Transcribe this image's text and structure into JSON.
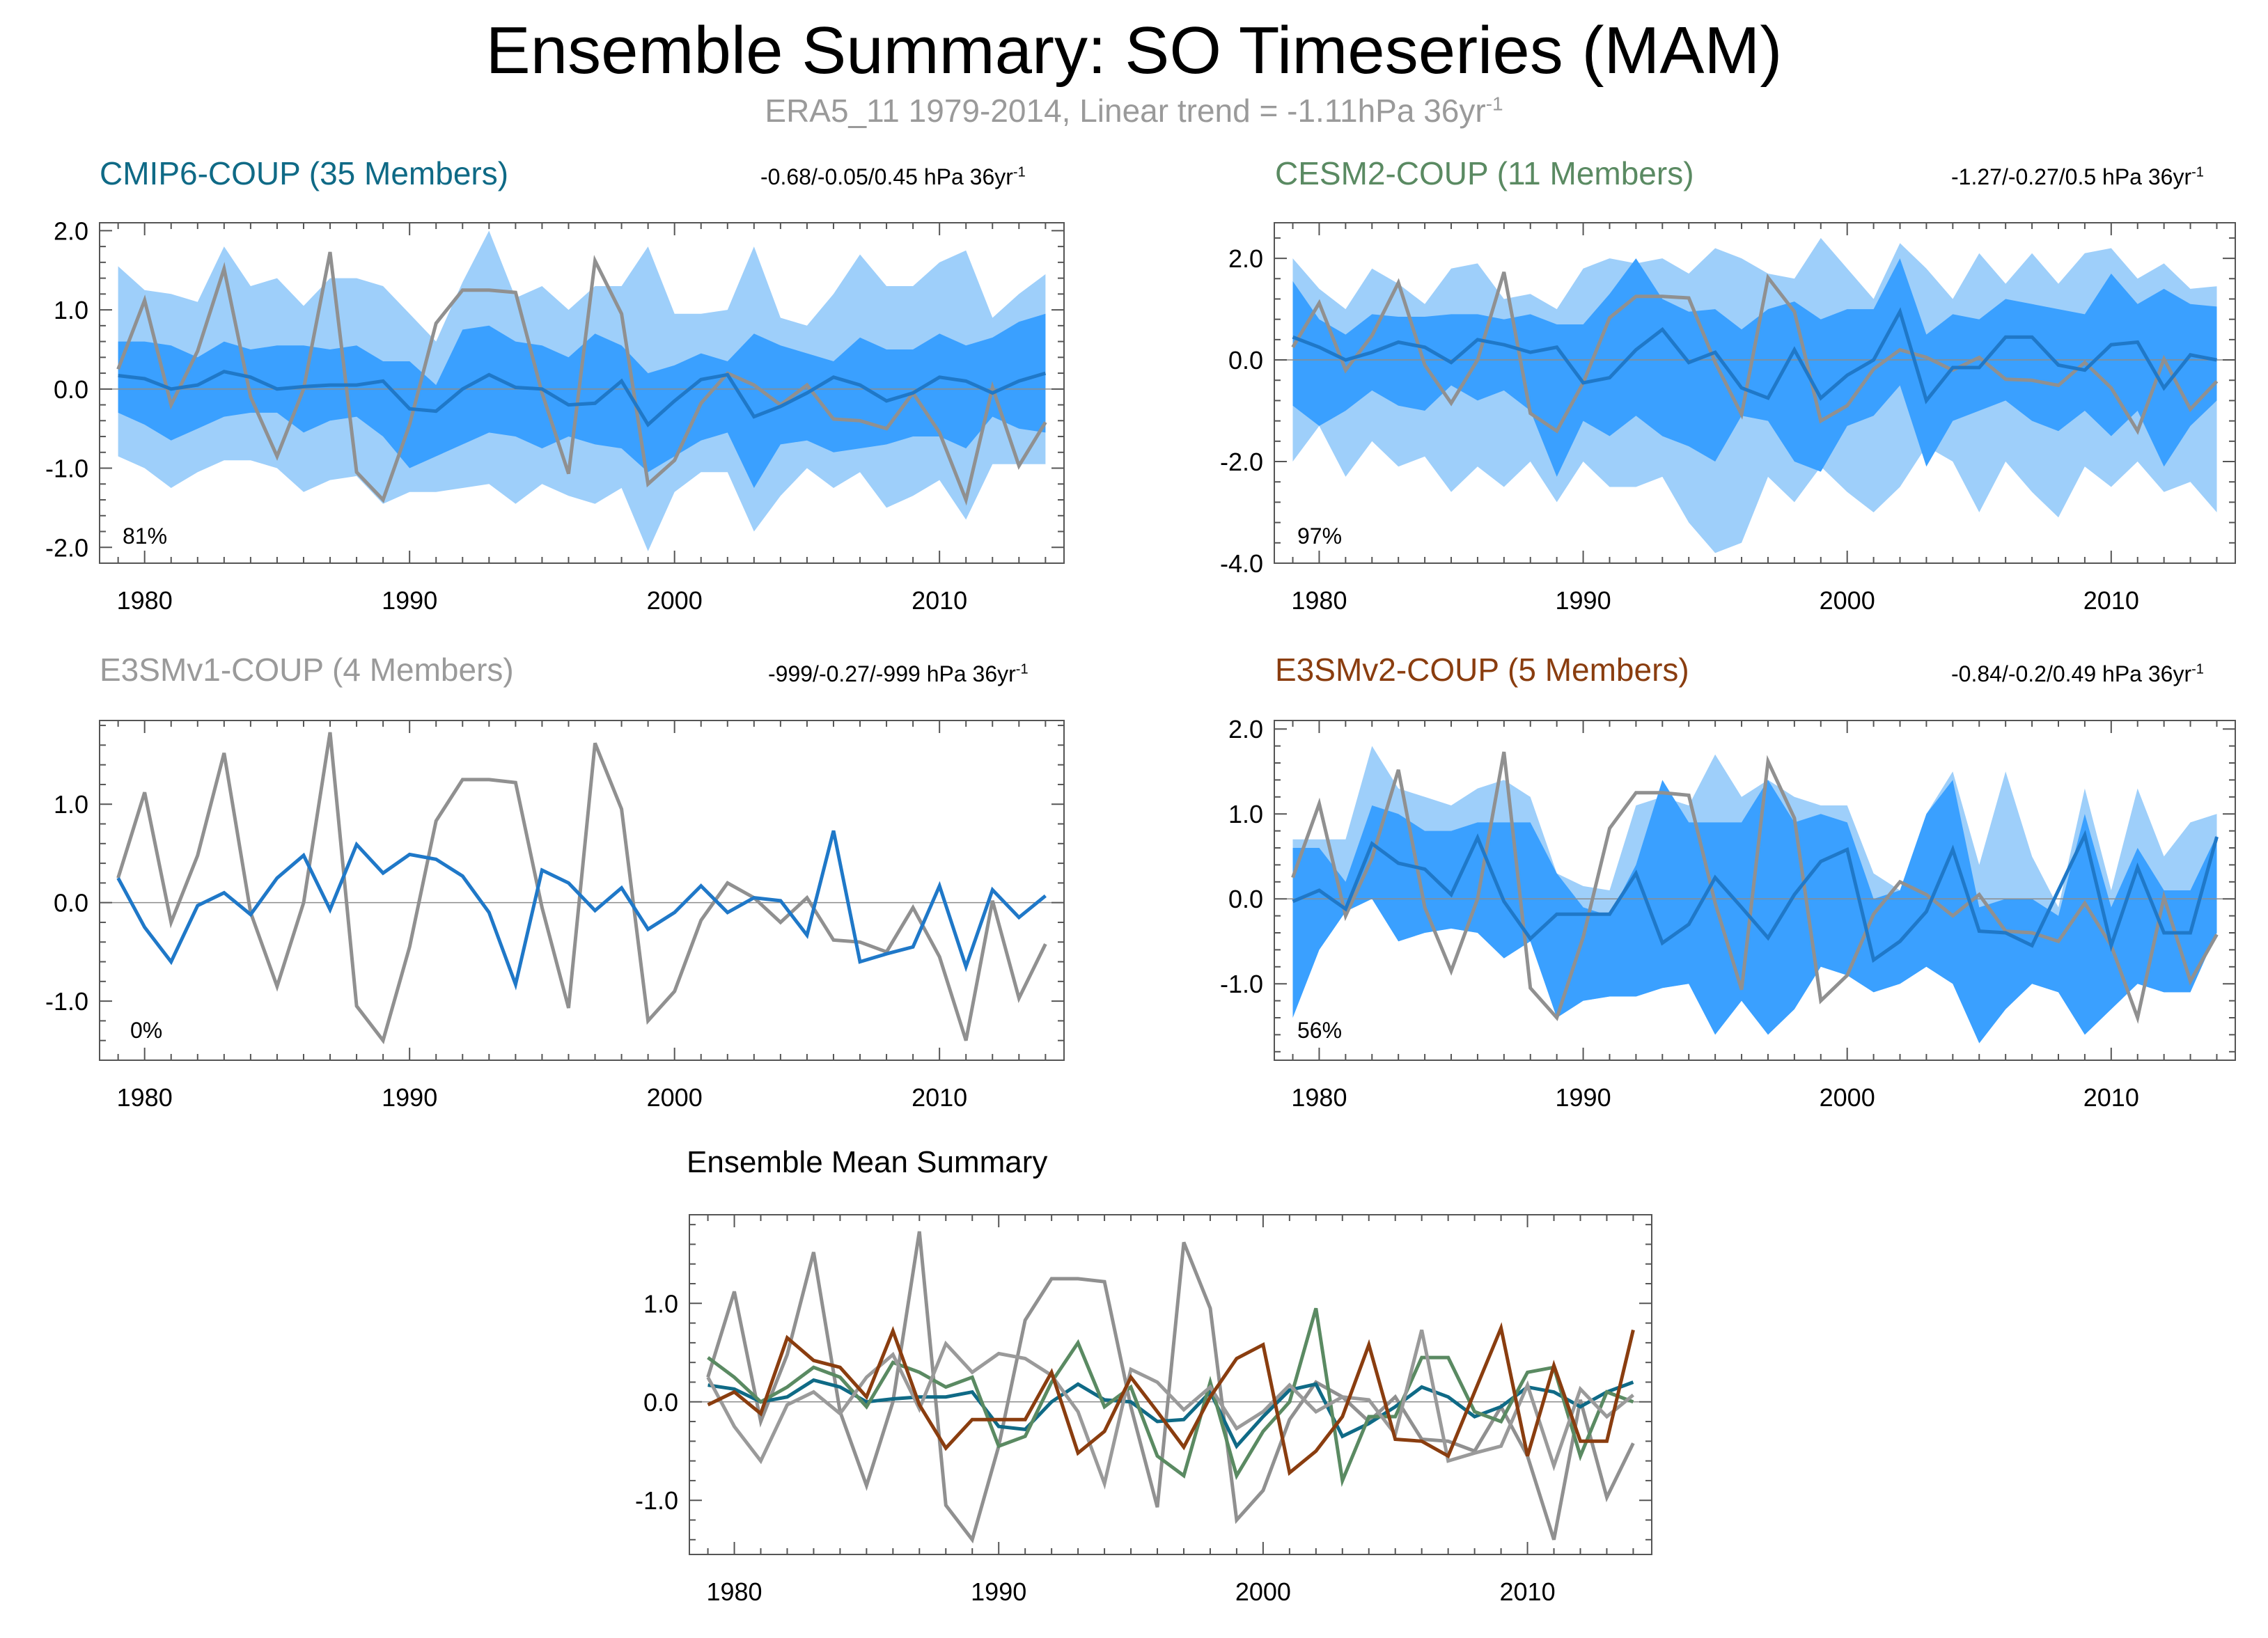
{
  "figure": {
    "title": "Ensemble Summary: SO Timeseries (MAM)",
    "subtitle": "ERA5_11 1979-2014, Linear trend = -1.11hPa 36yr",
    "subtitle_exp": "-1"
  },
  "colors": {
    "obs": "#909090",
    "ens_mean": "#1f78c8",
    "band_outer": "#9ecffa",
    "band_inner": "#3aa0ff",
    "cmip6": "#0f6a86",
    "cesm2": "#5a8a62",
    "e3smv1": "#9a9a9a",
    "e3smv2": "#8a3d0f",
    "axis": "#555555",
    "zero": "#8c8c8c"
  },
  "chart_data": [
    {
      "id": "cmip6",
      "type": "line",
      "title": "CMIP6-COUP (35 Members)",
      "stats": "-0.68/-0.05/0.45 hPa 36yr",
      "stats_exp": "-1",
      "pct_label": "81%",
      "xlim": [
        1978.3,
        2014.7
      ],
      "ylim": [
        -2.2,
        2.1
      ],
      "yticks": [
        -2.0,
        -1.0,
        0.0,
        1.0,
        2.0
      ],
      "ytick_labels": [
        "-2.0",
        "-1.0",
        "0.0",
        "1.0",
        "2.0"
      ],
      "xticks": [
        1980,
        1990,
        2000,
        2010
      ],
      "xtick_labels": [
        "1980",
        "1990",
        "2000",
        "2010"
      ],
      "band_outer": {
        "upper": [
          1.55,
          1.25,
          1.2,
          1.1,
          1.8,
          1.3,
          1.4,
          1.05,
          1.4,
          1.4,
          1.3,
          0.95,
          0.6,
          1.35,
          2.0,
          1.15,
          1.3,
          1.0,
          1.3,
          1.3,
          1.8,
          0.95,
          0.95,
          1.0,
          1.8,
          0.9,
          0.8,
          1.2,
          1.7,
          1.3,
          1.3,
          1.6,
          1.75,
          0.9,
          1.2,
          1.45
        ],
        "lower": [
          -0.85,
          -1.0,
          -1.25,
          -1.05,
          -0.9,
          -0.9,
          -1.0,
          -1.3,
          -1.15,
          -1.1,
          -1.45,
          -1.3,
          -1.3,
          -1.25,
          -1.2,
          -1.45,
          -1.2,
          -1.35,
          -1.45,
          -1.25,
          -2.05,
          -1.3,
          -1.05,
          -1.05,
          -1.8,
          -1.35,
          -1.0,
          -1.25,
          -1.05,
          -1.5,
          -1.35,
          -1.15,
          -1.65,
          -0.95,
          -0.95,
          -0.95
        ]
      },
      "band_inner": {
        "upper": [
          0.6,
          0.6,
          0.55,
          0.4,
          0.6,
          0.5,
          0.55,
          0.55,
          0.5,
          0.55,
          0.35,
          0.35,
          0.05,
          0.75,
          0.8,
          0.6,
          0.55,
          0.4,
          0.7,
          0.55,
          0.2,
          0.3,
          0.45,
          0.35,
          0.7,
          0.55,
          0.45,
          0.35,
          0.65,
          0.5,
          0.5,
          0.7,
          0.55,
          0.65,
          0.85,
          0.95
        ],
        "lower": [
          -0.3,
          -0.45,
          -0.65,
          -0.5,
          -0.35,
          -0.3,
          -0.3,
          -0.55,
          -0.4,
          -0.35,
          -0.6,
          -1.0,
          -0.85,
          -0.7,
          -0.55,
          -0.6,
          -0.75,
          -0.6,
          -0.7,
          -0.75,
          -1.05,
          -0.85,
          -0.65,
          -0.55,
          -1.25,
          -0.7,
          -0.65,
          -0.8,
          -0.75,
          -0.7,
          -0.6,
          -0.6,
          -0.75,
          -0.35,
          -0.5,
          -0.55
        ]
      },
      "ens_mean": [
        0.17,
        0.13,
        0.0,
        0.05,
        0.22,
        0.15,
        0.0,
        0.03,
        0.05,
        0.05,
        0.1,
        -0.25,
        -0.28,
        0.0,
        0.18,
        0.02,
        0.0,
        -0.2,
        -0.18,
        0.1,
        -0.45,
        -0.15,
        0.12,
        0.18,
        -0.35,
        -0.22,
        -0.05,
        0.15,
        0.05,
        -0.15,
        -0.05,
        0.15,
        0.1,
        -0.05,
        0.1,
        0.2
      ],
      "show_obs": true
    },
    {
      "id": "cesm2",
      "type": "line",
      "title": "CESM2-COUP (11 Members)",
      "stats": "-1.27/-0.27/0.5 hPa 36yr",
      "stats_exp": "-1",
      "pct_label": "97%",
      "xlim": [
        1978.3,
        2014.7
      ],
      "ylim": [
        -4.0,
        2.7
      ],
      "yticks": [
        -4.0,
        -2.0,
        0.0,
        2.0
      ],
      "ytick_labels": [
        "-4.0",
        "-2.0",
        "0.0",
        "2.0"
      ],
      "xticks": [
        1980,
        1990,
        2000,
        2010
      ],
      "xtick_labels": [
        "1980",
        "1990",
        "2000",
        "2010"
      ],
      "band_outer": {
        "upper": [
          2.0,
          1.4,
          1.0,
          1.8,
          1.5,
          1.1,
          1.8,
          1.9,
          1.2,
          1.3,
          1.0,
          1.8,
          2.0,
          1.9,
          2.0,
          1.7,
          2.2,
          2.0,
          1.7,
          1.6,
          2.4,
          1.8,
          1.2,
          2.3,
          1.8,
          1.2,
          2.1,
          1.5,
          2.1,
          1.5,
          2.1,
          2.2,
          1.6,
          1.9,
          1.4,
          1.45
        ],
        "lower": [
          -2.0,
          -1.3,
          -2.3,
          -1.6,
          -2.1,
          -1.9,
          -2.6,
          -2.1,
          -2.5,
          -2.0,
          -2.8,
          -2.0,
          -2.5,
          -2.5,
          -2.3,
          -3.2,
          -3.8,
          -3.6,
          -2.3,
          -2.8,
          -2.1,
          -2.6,
          -3.0,
          -2.5,
          -1.7,
          -2.0,
          -3.0,
          -2.0,
          -2.6,
          -3.1,
          -2.1,
          -2.5,
          -2.0,
          -2.6,
          -2.4,
          -3.0
        ]
      },
      "band_inner": {
        "upper": [
          1.55,
          0.8,
          0.5,
          0.9,
          0.85,
          0.85,
          0.9,
          0.9,
          0.8,
          0.9,
          0.7,
          0.7,
          1.3,
          2.0,
          1.2,
          0.95,
          1.0,
          0.6,
          1.0,
          1.15,
          0.8,
          1.0,
          1.0,
          2.0,
          0.5,
          0.9,
          0.8,
          1.2,
          1.1,
          1.0,
          0.9,
          1.7,
          1.1,
          1.4,
          1.1,
          1.05
        ],
        "lower": [
          -0.9,
          -1.3,
          -1.0,
          -0.6,
          -0.9,
          -1.0,
          -0.5,
          -0.8,
          -0.6,
          -1.0,
          -2.3,
          -1.2,
          -1.5,
          -1.1,
          -1.5,
          -1.7,
          -2.0,
          -1.1,
          -1.2,
          -2.0,
          -2.2,
          -1.3,
          -1.1,
          -0.5,
          -2.1,
          -1.2,
          -1.0,
          -0.8,
          -1.2,
          -1.4,
          -1.0,
          -1.5,
          -1.0,
          -2.1,
          -1.3,
          -0.8
        ]
      },
      "ens_mean": [
        0.45,
        0.25,
        0.0,
        0.15,
        0.35,
        0.25,
        -0.05,
        0.4,
        0.3,
        0.15,
        0.25,
        -0.45,
        -0.35,
        0.2,
        0.6,
        -0.05,
        0.15,
        -0.55,
        -0.75,
        0.2,
        -0.75,
        -0.3,
        0.0,
        0.95,
        -0.8,
        -0.15,
        -0.15,
        0.45,
        0.45,
        -0.1,
        -0.2,
        0.3,
        0.35,
        -0.55,
        0.1,
        0.0
      ],
      "show_obs": true
    },
    {
      "id": "e3smv1",
      "type": "line",
      "title": "E3SMv1-COUP (4 Members)",
      "stats": "-999/-0.27/-999 hPa 36yr",
      "stats_exp": "-1",
      "pct_label": "0%",
      "xlim": [
        1978.3,
        2014.7
      ],
      "ylim": [
        -1.6,
        1.85
      ],
      "yticks": [
        -1.0,
        0.0,
        1.0
      ],
      "ytick_labels": [
        "-1.0",
        "0.0",
        "1.0"
      ],
      "xticks": [
        1980,
        1990,
        2000,
        2010
      ],
      "xtick_labels": [
        "1980",
        "1990",
        "2000",
        "2010"
      ],
      "ens_mean": [
        0.25,
        -0.25,
        -0.6,
        -0.03,
        0.1,
        -0.12,
        0.25,
        0.48,
        -0.07,
        0.59,
        0.3,
        0.49,
        0.44,
        0.27,
        -0.1,
        -0.83,
        0.33,
        0.2,
        -0.08,
        0.15,
        -0.27,
        -0.1,
        0.17,
        -0.1,
        0.05,
        0.02,
        -0.33,
        0.73,
        -0.6,
        -0.52,
        -0.45,
        0.17,
        -0.65,
        0.13,
        -0.15,
        0.07
      ],
      "show_obs": true
    },
    {
      "id": "e3smv2",
      "type": "line",
      "title": "E3SMv2-COUP (5 Members)",
      "stats": "-0.84/-0.2/0.49 hPa 36yr",
      "stats_exp": "-1",
      "pct_label": "56%",
      "xlim": [
        1978.3,
        2014.7
      ],
      "ylim": [
        -1.9,
        2.1
      ],
      "yticks": [
        -1.0,
        0.0,
        1.0,
        2.0
      ],
      "ytick_labels": [
        "-1.0",
        "0.0",
        "1.0",
        "2.0"
      ],
      "xticks": [
        1980,
        1990,
        2000,
        2010
      ],
      "xtick_labels": [
        "1980",
        "1990",
        "2000",
        "2010"
      ],
      "band_outer": {
        "upper": [
          0.7,
          0.7,
          0.7,
          1.8,
          1.3,
          1.2,
          1.1,
          1.3,
          1.4,
          1.2,
          0.3,
          0.15,
          0.1,
          1.1,
          1.2,
          1.1,
          1.7,
          1.2,
          1.4,
          1.2,
          1.1,
          1.1,
          0.3,
          0.1,
          1.0,
          1.5,
          0.4,
          1.5,
          0.5,
          -0.1,
          1.3,
          0.1,
          1.3,
          0.5,
          0.9,
          1.0
        ],
        "lower": [
          -1.4,
          -0.6,
          -0.15,
          0.0,
          -0.5,
          -0.4,
          -0.35,
          -0.4,
          -0.7,
          -0.5,
          -1.4,
          -1.2,
          -1.15,
          -1.15,
          -1.05,
          -1.0,
          -1.6,
          -1.2,
          -1.6,
          -1.3,
          -0.8,
          -0.9,
          -1.1,
          -1.0,
          -0.8,
          -1.0,
          -1.7,
          -1.3,
          -1.0,
          -1.1,
          -1.6,
          -1.3,
          -1.0,
          -1.1,
          -1.1,
          -0.4
        ]
      },
      "band_inner": {
        "upper": [
          0.6,
          0.6,
          0.2,
          1.1,
          1.0,
          0.8,
          0.8,
          0.9,
          0.9,
          0.9,
          0.3,
          -0.1,
          -0.2,
          0.4,
          1.4,
          0.9,
          0.9,
          0.9,
          1.4,
          0.9,
          1.0,
          0.9,
          0.0,
          0.1,
          1.0,
          1.4,
          -0.1,
          0.0,
          0.0,
          -0.2,
          1.0,
          -0.1,
          0.6,
          0.1,
          0.1,
          0.75
        ],
        "lower": [
          -1.4,
          -0.6,
          -0.15,
          0.0,
          -0.5,
          -0.4,
          -0.35,
          -0.4,
          -0.7,
          -0.5,
          -1.4,
          -1.2,
          -1.15,
          -1.15,
          -1.05,
          -1.0,
          -1.6,
          -1.2,
          -1.6,
          -1.3,
          -0.8,
          -0.9,
          -1.1,
          -1.0,
          -0.8,
          -1.0,
          -1.7,
          -1.3,
          -1.0,
          -1.1,
          -1.6,
          -1.3,
          -1.0,
          -1.1,
          -1.1,
          -0.4
        ]
      },
      "ens_mean": [
        -0.03,
        0.1,
        -0.12,
        0.65,
        0.42,
        0.35,
        0.05,
        0.72,
        -0.03,
        -0.47,
        -0.18,
        -0.18,
        -0.18,
        0.3,
        -0.52,
        -0.3,
        0.25,
        -0.1,
        -0.46,
        0.05,
        0.44,
        0.58,
        -0.72,
        -0.5,
        -0.15,
        0.58,
        -0.38,
        -0.4,
        -0.55,
        0.1,
        0.75,
        -0.55,
        0.37,
        -0.4,
        -0.4,
        0.73
      ],
      "show_obs": true
    },
    {
      "id": "summary",
      "type": "line",
      "title": "Ensemble Mean Summary",
      "xlim": [
        1978.3,
        2014.7
      ],
      "ylim": [
        -1.55,
        1.9
      ],
      "yticks": [
        -1.0,
        0.0,
        1.0
      ],
      "ytick_labels": [
        "-1.0",
        "0.0",
        "1.0"
      ],
      "xticks": [
        1980,
        1990,
        2000,
        2010
      ],
      "xtick_labels": [
        "1980",
        "1990",
        "2000",
        "2010"
      ],
      "series_refs": [
        "cmip6",
        "cesm2",
        "e3smv1",
        "e3smv2"
      ],
      "show_obs": true
    }
  ],
  "obs_series": {
    "name": "ERA5_11",
    "years_start": 1979,
    "values": [
      0.25,
      1.12,
      -0.2,
      0.48,
      1.52,
      -0.1,
      -0.85,
      0.0,
      1.73,
      -1.05,
      -1.4,
      -0.45,
      0.83,
      1.25,
      1.25,
      1.22,
      -0.05,
      -1.07,
      1.62,
      0.95,
      -1.2,
      -0.9,
      -0.18,
      0.2,
      0.05,
      -0.2,
      0.05,
      -0.38,
      -0.4,
      -0.5,
      -0.05,
      -0.55,
      -1.4,
      0.02,
      -0.97,
      -0.42
    ]
  }
}
